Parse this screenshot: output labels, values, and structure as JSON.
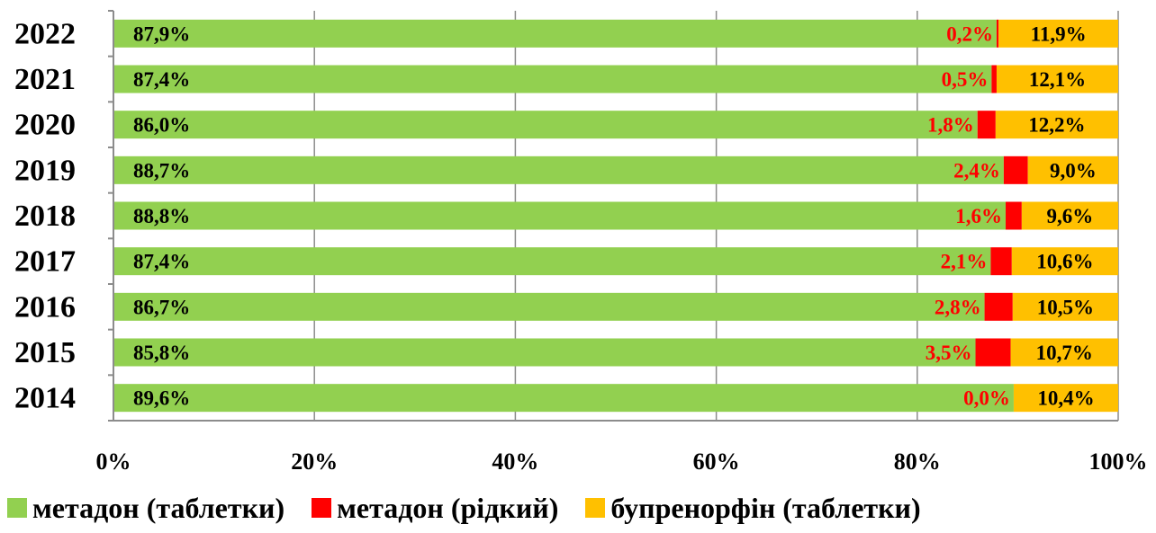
{
  "chart_data": {
    "type": "bar",
    "orientation": "horizontal",
    "stacked": "percent",
    "categories": [
      "2022",
      "2021",
      "2020",
      "2019",
      "2018",
      "2017",
      "2016",
      "2015",
      "2014"
    ],
    "series": [
      {
        "name": "метадон (таблетки)",
        "color": "#92D050",
        "label_color": "#000000",
        "values": [
          87.9,
          87.4,
          86.0,
          88.7,
          88.8,
          87.4,
          86.7,
          85.8,
          89.6
        ],
        "labels": [
          "87,9%",
          "87,4%",
          "86,0%",
          "88,7%",
          "88,8%",
          "87,4%",
          "86,7%",
          "85,8%",
          "89,6%"
        ]
      },
      {
        "name": "метадон (рідкий)",
        "color": "#FF0000",
        "label_color": "#FF0000",
        "values": [
          0.2,
          0.5,
          1.8,
          2.4,
          1.6,
          2.1,
          2.8,
          3.5,
          0.0
        ],
        "labels": [
          "0,2%",
          "0,5%",
          "1,8%",
          "2,4%",
          "1,6%",
          "2,1%",
          "2,8%",
          "3,5%",
          "0,0%"
        ]
      },
      {
        "name": "бупренорфін (таблетки)",
        "color": "#FFC000",
        "label_color": "#000000",
        "values": [
          11.9,
          12.1,
          12.2,
          9.0,
          9.6,
          10.6,
          10.5,
          10.7,
          10.4
        ],
        "labels": [
          "11,9%",
          "12,1%",
          "12,2%",
          "9,0%",
          "9,6%",
          "10,6%",
          "10,5%",
          "10,7%",
          "10,4%"
        ]
      }
    ],
    "x_ticks": [
      "0%",
      "20%",
      "40%",
      "60%",
      "80%",
      "100%"
    ],
    "xlim": [
      0,
      100
    ],
    "grid": true,
    "legend_position": "bottom"
  }
}
